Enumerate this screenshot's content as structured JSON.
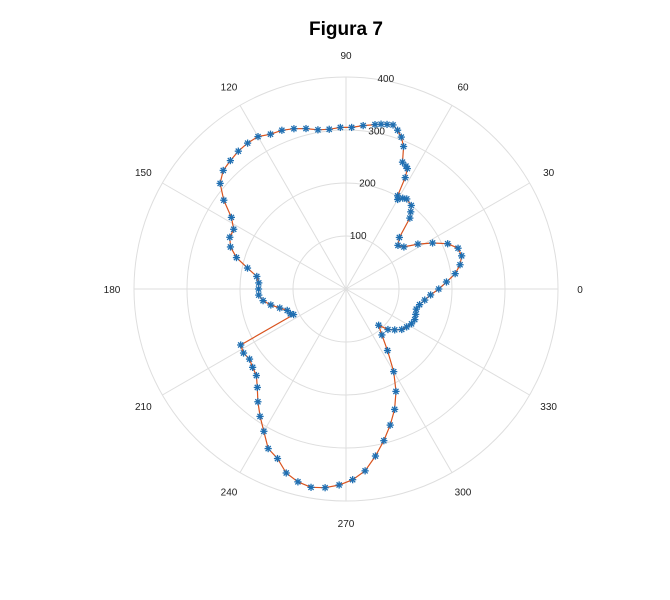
{
  "chart_data": {
    "type": "polar",
    "title": "Figura 7",
    "theta_ticks": [
      "0",
      "30",
      "60",
      "90",
      "120",
      "150",
      "180",
      "210",
      "240",
      "270",
      "300",
      "330"
    ],
    "r_ticks": [
      "100",
      "200",
      "300",
      "400"
    ],
    "rlim": [
      0,
      400
    ],
    "grid": true,
    "colors": {
      "line": "#d9531e",
      "marker": "#1f6fb2"
    },
    "series": [
      {
        "marker": "asterisk",
        "theta_deg": [
          0,
          4,
          8,
          12,
          16,
          20,
          24,
          28,
          32,
          36,
          40,
          44,
          48,
          50,
          52,
          56,
          58,
          60,
          61,
          62,
          63,
          64,
          66,
          68,
          70,
          72,
          74,
          76,
          78,
          80,
          84,
          88,
          92,
          96,
          100,
          104,
          108,
          112,
          116,
          120,
          124,
          128,
          132,
          136,
          140,
          144,
          148,
          152,
          156,
          160,
          164,
          168,
          172,
          176,
          180,
          184,
          188,
          192,
          196,
          200,
          204,
          206,
          208,
          212,
          216,
          220,
          224,
          228,
          232,
          236,
          240,
          244,
          248,
          252,
          256,
          260,
          264,
          268,
          272,
          276,
          280,
          284,
          288,
          292,
          296,
          300,
          304,
          308,
          312,
          316,
          320,
          324,
          328,
          332,
          336,
          340,
          344,
          348,
          352,
          356
        ],
        "r": [
          175,
          190,
          208,
          220,
          227,
          225,
          210,
          185,
          160,
          135,
          128,
          140,
          180,
          190,
          200,
          205,
          202,
          195,
          201,
          238,
          255,
          258,
          262,
          290,
          305,
          315,
          322,
          320,
          318,
          315,
          310,
          305,
          305,
          303,
          305,
          312,
          318,
          323,
          325,
          332,
          332,
          330,
          326,
          322,
          310,
          285,
          255,
          240,
          240,
          232,
          215,
          190,
          170,
          165,
          165,
          165,
          158,
          145,
          130,
          118,
          115,
          110,
          225,
          228,
          225,
          230,
          235,
          250,
          270,
          290,
          310,
          335,
          345,
          365,
          375,
          380,
          377,
          370,
          360,
          345,
          320,
          295,
          270,
          245,
          215,
          180,
          140,
          110,
          92,
          110,
          120,
          130,
          135,
          140,
          142,
          140,
          138,
          142,
          150,
          160
        ]
      }
    ]
  }
}
